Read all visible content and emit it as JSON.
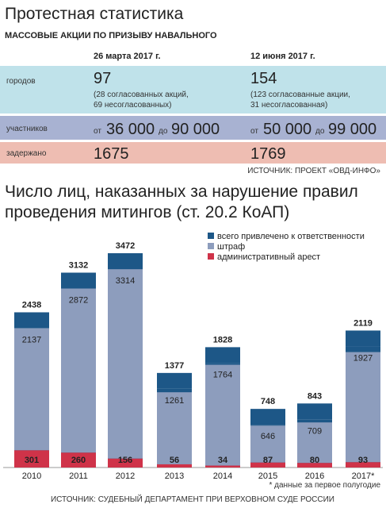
{
  "header": {
    "title": "Протестная статистика",
    "subtitle": "МАССОВЫЕ АКЦИИ ПО ПРИЗЫВУ НАВАЛЬНОГО"
  },
  "table": {
    "columns": [
      "26 марта 2017 г.",
      "12 июня 2017 г."
    ],
    "rows": [
      {
        "label": "городов",
        "cells": [
          {
            "main": "97",
            "note": [
              "(28 согласованных акций,",
              "69 несогласованных)"
            ]
          },
          {
            "main": "154",
            "note": [
              "(123 согласованные акции,",
              "31 несогласованная)"
            ]
          }
        ]
      },
      {
        "label": "участников",
        "cells": [
          {
            "from": "от",
            "low": "36 000",
            "to": "до",
            "high": "90 000"
          },
          {
            "from": "от",
            "low": "50 000",
            "to": "до",
            "high": "99 000"
          }
        ]
      },
      {
        "label": "задержано",
        "cells": [
          {
            "main": "1675"
          },
          {
            "main": "1769"
          }
        ]
      }
    ],
    "source": "ИСТОЧНИК: ПРОЕКТ «ОВД-ИНФО»"
  },
  "chart_data": {
    "type": "bar",
    "title": [
      "Число лиц, наказанных за нарушение правил",
      "проведения митингов (ст. 20.2 КоАП)"
    ],
    "categories": [
      "2010",
      "2011",
      "2012",
      "2013",
      "2014",
      "2015",
      "2016",
      "2017*"
    ],
    "series": [
      {
        "name": "всего привлечено к ответственности",
        "color": "#1d5787",
        "values": [
          2438,
          3132,
          3472,
          1377,
          1828,
          748,
          843,
          2119
        ]
      },
      {
        "name": "штраф",
        "color": "#8d9dbd",
        "values": [
          2137,
          2872,
          3314,
          1261,
          1764,
          646,
          709,
          1927
        ]
      },
      {
        "name": "административный арест",
        "color": "#cf3349",
        "values": [
          301,
          260,
          156,
          56,
          34,
          87,
          80,
          93
        ]
      }
    ],
    "footnote": "* данные за первое полугодие",
    "source": "ИСТОЧНИК: СУДЕБНЫЙ ДЕПАРТАМЕНТ ПРИ ВЕРХОВНОМ СУДЕ РОССИИ"
  }
}
